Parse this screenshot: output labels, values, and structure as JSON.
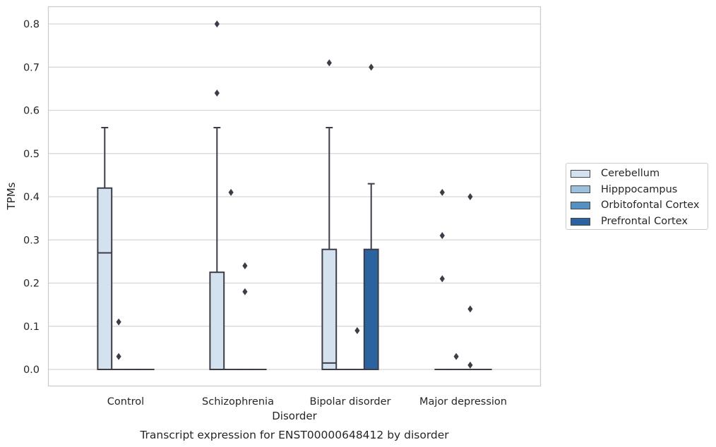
{
  "chart_data": {
    "type": "box",
    "caption": "Transcript expression for ENST00000648412 by disorder",
    "xlabel": "Disorder",
    "ylabel": "TPMs",
    "ylim": [
      -0.04,
      0.84
    ],
    "yticks": [
      "0.0",
      "0.1",
      "0.2",
      "0.3",
      "0.4",
      "0.5",
      "0.6",
      "0.7",
      "0.8"
    ],
    "grid": "horizontal",
    "legend_position": "right",
    "categories": [
      "Control",
      "Schizophrenia",
      "Bipolar disorder",
      "Major depression"
    ],
    "series": [
      {
        "name": "Cerebellum",
        "color": "#d4e2f0",
        "boxes": [
          {
            "q1": 0.0,
            "median": 0.27,
            "q3": 0.42,
            "whisker_low": 0.0,
            "whisker_high": 0.56,
            "outliers": []
          },
          {
            "q1": 0.0,
            "median": 0.0,
            "q3": 0.225,
            "whisker_low": 0.0,
            "whisker_high": 0.56,
            "outliers": [
              0.64,
              0.8
            ]
          },
          {
            "q1": 0.0,
            "median": 0.015,
            "q3": 0.278,
            "whisker_low": 0.0,
            "whisker_high": 0.56,
            "outliers": [
              0.71
            ]
          },
          {
            "q1": 0.0,
            "median": 0.0,
            "q3": 0.0,
            "whisker_low": 0.0,
            "whisker_high": 0.0,
            "outliers": [
              0.21,
              0.31,
              0.41
            ]
          }
        ]
      },
      {
        "name": "Hipppocampus",
        "color": "#9ac0de",
        "boxes": [
          {
            "q1": 0.0,
            "median": 0.0,
            "q3": 0.0,
            "whisker_low": 0.0,
            "whisker_high": 0.0,
            "outliers": [
              0.03,
              0.11
            ]
          },
          {
            "q1": 0.0,
            "median": 0.0,
            "q3": 0.0,
            "whisker_low": 0.0,
            "whisker_high": 0.0,
            "outliers": [
              0.41
            ]
          },
          {
            "q1": 0.0,
            "median": 0.0,
            "q3": 0.0,
            "whisker_low": 0.0,
            "whisker_high": 0.0,
            "outliers": []
          },
          {
            "q1": 0.0,
            "median": 0.0,
            "q3": 0.0,
            "whisker_low": 0.0,
            "whisker_high": 0.0,
            "outliers": [
              0.03
            ]
          }
        ]
      },
      {
        "name": "Orbitofontal Cortex",
        "color": "#5590c2",
        "boxes": [
          {
            "q1": 0.0,
            "median": 0.0,
            "q3": 0.0,
            "whisker_low": 0.0,
            "whisker_high": 0.0,
            "outliers": []
          },
          {
            "q1": 0.0,
            "median": 0.0,
            "q3": 0.0,
            "whisker_low": 0.0,
            "whisker_high": 0.0,
            "outliers": [
              0.18,
              0.24
            ]
          },
          {
            "q1": 0.0,
            "median": 0.0,
            "q3": 0.0,
            "whisker_low": 0.0,
            "whisker_high": 0.0,
            "outliers": [
              0.09
            ]
          },
          {
            "q1": 0.0,
            "median": 0.0,
            "q3": 0.0,
            "whisker_low": 0.0,
            "whisker_high": 0.0,
            "outliers": [
              0.01,
              0.14,
              0.4
            ]
          }
        ]
      },
      {
        "name": "Prefrontal Cortex",
        "color": "#2a63a0",
        "boxes": [
          {
            "q1": 0.0,
            "median": 0.0,
            "q3": 0.0,
            "whisker_low": 0.0,
            "whisker_high": 0.0,
            "outliers": []
          },
          {
            "q1": 0.0,
            "median": 0.0,
            "q3": 0.0,
            "whisker_low": 0.0,
            "whisker_high": 0.0,
            "outliers": []
          },
          {
            "q1": 0.0,
            "median": 0.0,
            "q3": 0.278,
            "whisker_low": 0.0,
            "whisker_high": 0.43,
            "outliers": [
              0.7
            ]
          },
          {
            "q1": 0.0,
            "median": 0.0,
            "q3": 0.0,
            "whisker_low": 0.0,
            "whisker_high": 0.0,
            "outliers": []
          }
        ]
      }
    ]
  }
}
